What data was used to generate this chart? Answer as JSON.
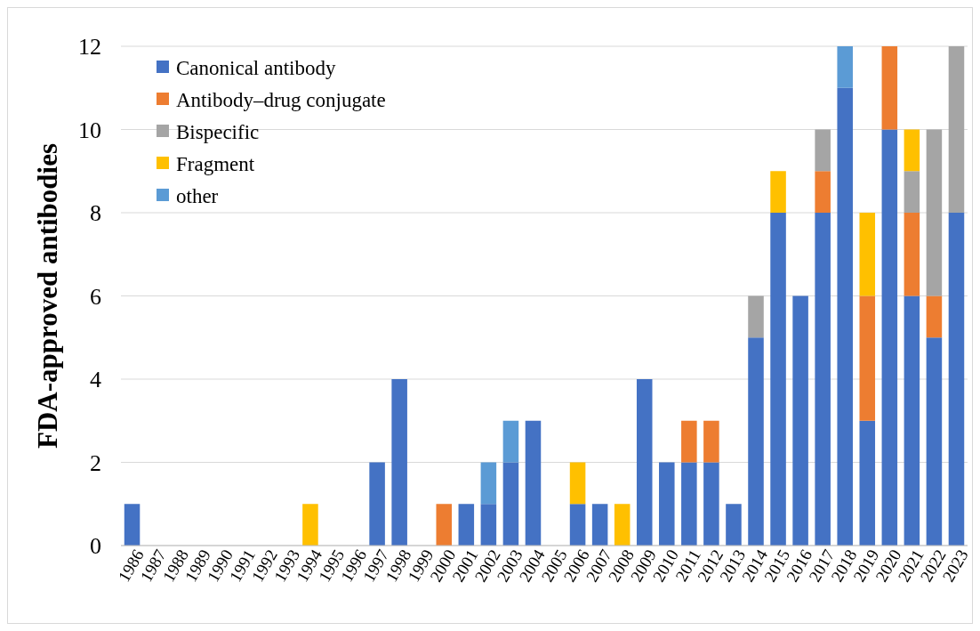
{
  "chart_data": {
    "type": "bar",
    "stacked": true,
    "ylabel": "FDA-approved antibodies",
    "categories": [
      "1986",
      "1987",
      "1988",
      "1989",
      "1990",
      "1991",
      "1992",
      "1993",
      "1994",
      "1995",
      "1996",
      "1997",
      "1998",
      "1999",
      "2000",
      "2001",
      "2002",
      "2003",
      "2004",
      "2005",
      "2006",
      "2007",
      "2008",
      "2009",
      "2010",
      "2011",
      "2012",
      "2013",
      "2014",
      "2015",
      "2016",
      "2017",
      "2018",
      "2019",
      "2020",
      "2021",
      "2022",
      "2023"
    ],
    "series": [
      {
        "name": "Canonical antibody",
        "color": "#4472c4",
        "values": [
          1,
          0,
          0,
          0,
          0,
          0,
          0,
          0,
          0,
          0,
          0,
          2,
          4,
          0,
          0,
          1,
          1,
          2,
          3,
          0,
          1,
          1,
          0,
          4,
          2,
          2,
          2,
          1,
          5,
          8,
          6,
          8,
          11,
          3,
          10,
          6,
          5,
          8
        ]
      },
      {
        "name": "Antibody–drug conjugate",
        "color": "#ed7d31",
        "values": [
          0,
          0,
          0,
          0,
          0,
          0,
          0,
          0,
          0,
          0,
          0,
          0,
          0,
          0,
          1,
          0,
          0,
          0,
          0,
          0,
          0,
          0,
          0,
          0,
          0,
          1,
          1,
          0,
          0,
          0,
          0,
          1,
          0,
          3,
          2,
          2,
          1,
          0
        ]
      },
      {
        "name": "Bispecific",
        "color": "#a5a5a5",
        "values": [
          0,
          0,
          0,
          0,
          0,
          0,
          0,
          0,
          0,
          0,
          0,
          0,
          0,
          0,
          0,
          0,
          0,
          0,
          0,
          0,
          0,
          0,
          0,
          0,
          0,
          0,
          0,
          0,
          1,
          0,
          0,
          1,
          0,
          0,
          0,
          1,
          4,
          4
        ]
      },
      {
        "name": "Fragment",
        "color": "#ffc000",
        "values": [
          0,
          0,
          0,
          0,
          0,
          0,
          0,
          0,
          1,
          0,
          0,
          0,
          0,
          0,
          0,
          0,
          0,
          0,
          0,
          0,
          1,
          0,
          1,
          0,
          0,
          0,
          0,
          0,
          0,
          1,
          0,
          0,
          0,
          2,
          0,
          1,
          0,
          0
        ]
      },
      {
        "name": "other",
        "color": "#5b9bd5",
        "values": [
          0,
          0,
          0,
          0,
          0,
          0,
          0,
          0,
          0,
          0,
          0,
          0,
          0,
          0,
          0,
          0,
          1,
          1,
          0,
          0,
          0,
          0,
          0,
          0,
          0,
          0,
          0,
          0,
          0,
          0,
          0,
          0,
          1,
          0,
          0,
          0,
          0,
          0
        ]
      }
    ],
    "ylim": [
      0,
      12
    ],
    "yticks": [
      0,
      2,
      4,
      6,
      8,
      10,
      12
    ],
    "grid": "y",
    "legend": "top left"
  }
}
